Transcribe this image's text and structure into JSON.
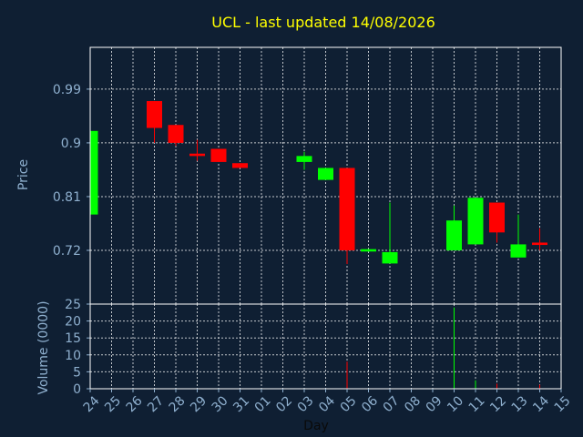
{
  "chart_data": [
    {
      "type": "candlestick",
      "title": "UCL - last updated 14/08/2026",
      "ylabel": "Price",
      "ylim": [
        0.63,
        1.06
      ],
      "yticks": [
        "0.72",
        "0.81",
        "0.9",
        "0.99"
      ],
      "ytick_values": [
        0.72,
        0.81,
        0.9,
        0.99
      ],
      "grid": true,
      "up_color": "#00ff00",
      "down_color": "#ff0000",
      "x_labels": [
        "24",
        "25",
        "26",
        "27",
        "28",
        "29",
        "30",
        "31",
        "01",
        "02",
        "03",
        "04",
        "05",
        "06",
        "07",
        "08",
        "09",
        "10",
        "11",
        "12",
        "13",
        "14",
        "15"
      ],
      "candles": [
        {
          "x": "24",
          "open": 0.78,
          "close": 0.92,
          "high": 0.92,
          "low": 0.78
        },
        {
          "x": "27",
          "open": 0.97,
          "close": 0.925,
          "high": 0.97,
          "low": 0.9
        },
        {
          "x": "28",
          "open": 0.93,
          "close": 0.9,
          "high": 0.93,
          "low": 0.895
        },
        {
          "x": "29",
          "open": 0.882,
          "close": 0.878,
          "high": 0.905,
          "low": 0.87
        },
        {
          "x": "30",
          "open": 0.89,
          "close": 0.868,
          "high": 0.89,
          "low": 0.868
        },
        {
          "x": "31",
          "open": 0.866,
          "close": 0.858,
          "high": 0.866,
          "low": 0.858
        },
        {
          "x": "03",
          "open": 0.868,
          "close": 0.878,
          "high": 0.885,
          "low": 0.855
        },
        {
          "x": "04",
          "open": 0.838,
          "close": 0.858,
          "high": 0.858,
          "low": 0.838
        },
        {
          "x": "05",
          "open": 0.858,
          "close": 0.72,
          "high": 0.858,
          "low": 0.697
        },
        {
          "x": "06",
          "open": 0.718,
          "close": 0.722,
          "high": 0.722,
          "low": 0.718
        },
        {
          "x": "07",
          "open": 0.698,
          "close": 0.717,
          "high": 0.8,
          "low": 0.698
        },
        {
          "x": "10",
          "open": 0.72,
          "close": 0.77,
          "high": 0.795,
          "low": 0.72
        },
        {
          "x": "11",
          "open": 0.73,
          "close": 0.808,
          "high": 0.808,
          "low": 0.73
        },
        {
          "x": "12",
          "open": 0.8,
          "close": 0.75,
          "high": 0.8,
          "low": 0.733
        },
        {
          "x": "13",
          "open": 0.708,
          "close": 0.73,
          "high": 0.78,
          "low": 0.708
        },
        {
          "x": "14",
          "open": 0.733,
          "close": 0.729,
          "high": 0.757,
          "low": 0.72
        }
      ]
    },
    {
      "type": "bar",
      "ylabel": "Volume (0000)",
      "xlabel": "Day",
      "ylim": [
        0,
        25
      ],
      "yticks": [
        "0",
        "5",
        "10",
        "15",
        "20",
        "25"
      ],
      "ytick_values": [
        0,
        5,
        10,
        15,
        20,
        25
      ],
      "grid": true,
      "bars": [
        {
          "x": "05",
          "value": 8,
          "color": "#ff0000"
        },
        {
          "x": "10",
          "value": 24,
          "color": "#00ff00"
        },
        {
          "x": "11",
          "value": 2.5,
          "color": "#00ff00"
        },
        {
          "x": "12",
          "value": 1.5,
          "color": "#ff0000"
        },
        {
          "x": "14",
          "value": 1.2,
          "color": "#ff0000"
        }
      ]
    }
  ]
}
